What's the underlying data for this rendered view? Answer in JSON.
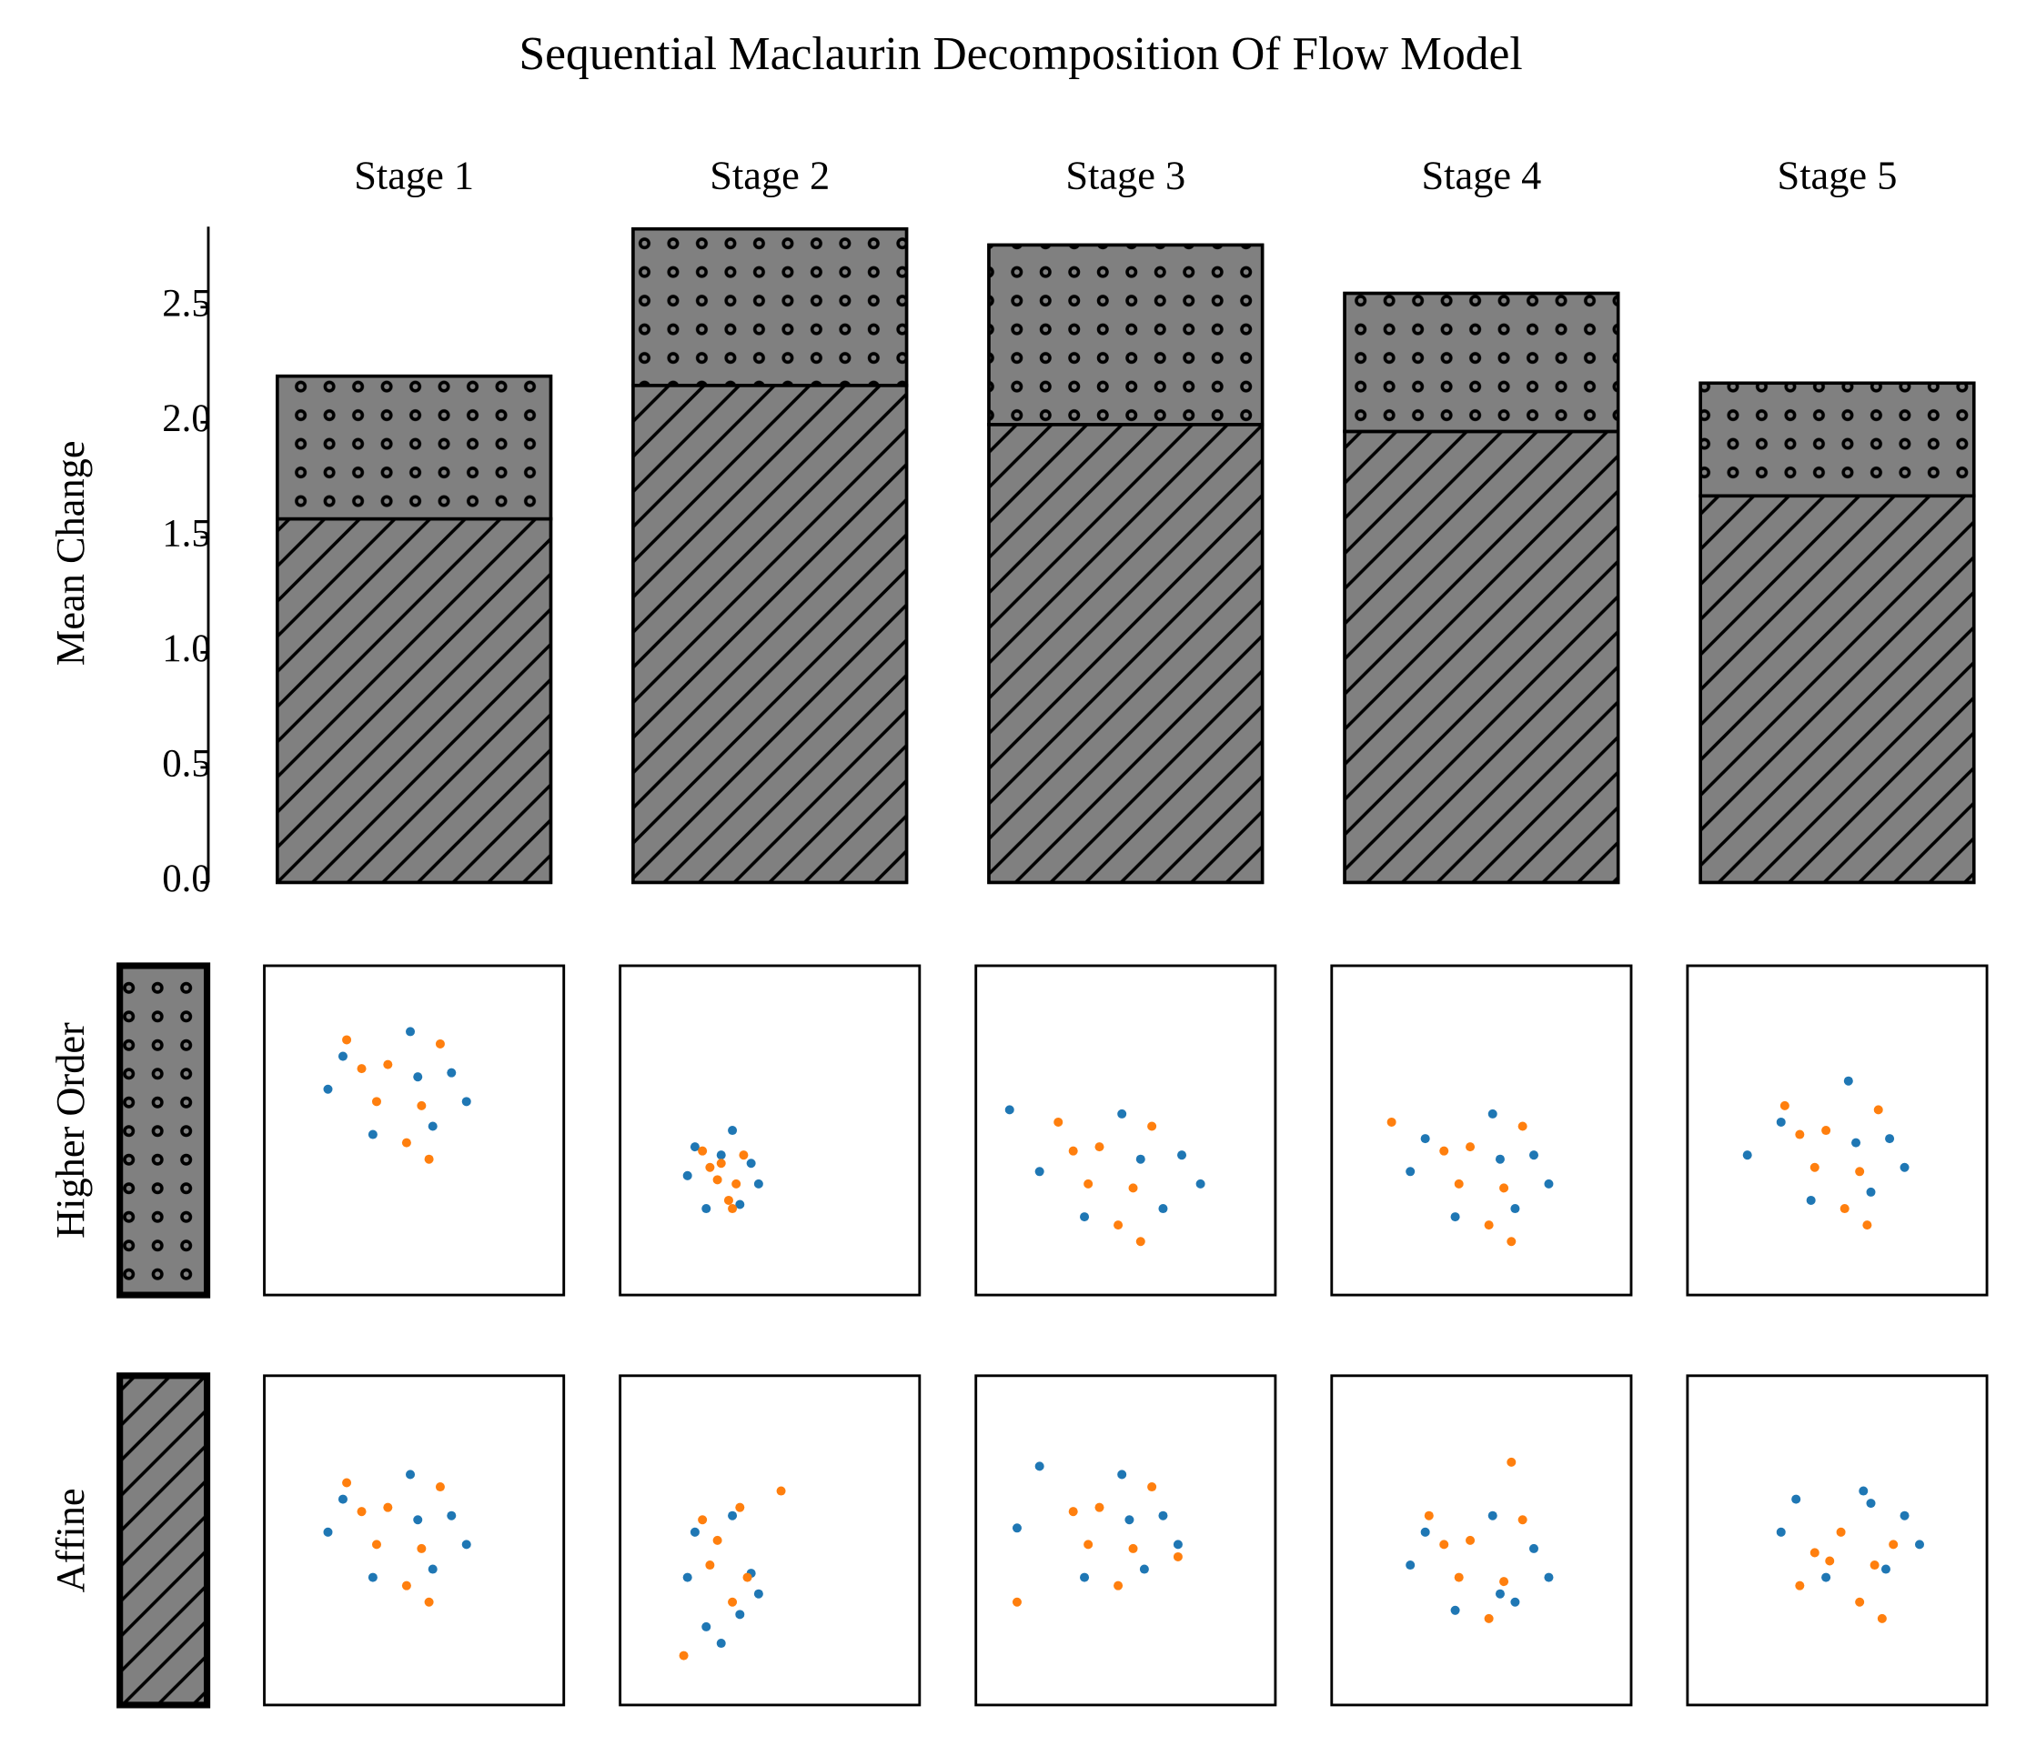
{
  "chart_data": [
    {
      "type": "bar",
      "title": "Sequential Maclaurin Decomposition Of Flow Model",
      "categories": [
        "Stage 1",
        "Stage 2",
        "Stage 3",
        "Stage 4",
        "Stage 5"
      ],
      "ylabel": "Mean Change",
      "stacked": true,
      "ylim": [
        0,
        2.85
      ],
      "yticks": [
        {
          "value": 0,
          "label": "0.0"
        },
        {
          "value": 0.5,
          "label": "0.5"
        },
        {
          "value": 1,
          "label": "1.0"
        },
        {
          "value": 1.5,
          "label": "1.5"
        },
        {
          "value": 2,
          "label": "2.0"
        },
        {
          "value": 2.5,
          "label": "2.5"
        }
      ],
      "series": [
        {
          "name": "Affine",
          "color": "#808080",
          "hatch": "/",
          "values": [
            1.58,
            2.16,
            1.99,
            1.96,
            1.68
          ]
        },
        {
          "name": "Higher Order",
          "color": "#808080",
          "hatch": "o",
          "values": [
            0.62,
            0.68,
            0.78,
            0.6,
            0.49
          ]
        }
      ]
    },
    {
      "type": "scatter",
      "xlim": [
        -4,
        4
      ],
      "ylim": [
        -4,
        4
      ],
      "rows": [
        {
          "panels": [
            {
              "series": [
                {
                  "color": "#1f77b4",
                  "x": [
                    -1.9,
                    1.0,
                    0.5,
                    -1.1,
                    -0.1,
                    1.4,
                    -2.3,
                    0.1
                  ],
                  "y": [
                    1.0,
                    0.6,
                    -0.7,
                    -0.9,
                    1.6,
                    -0.1,
                    0.2,
                    0.5
                  ]
                },
                {
                  "color": "#ff7f0e",
                  "x": [
                    -0.7,
                    0.2,
                    -1.4,
                    -0.2,
                    0.7,
                    -1.0,
                    -1.8,
                    0.4
                  ],
                  "y": [
                    0.8,
                    -0.2,
                    0.7,
                    -1.1,
                    1.3,
                    -0.1,
                    1.4,
                    -1.5
                  ]
                }
              ]
            },
            {
              "series": [
                {
                  "color": "#1f77b4",
                  "x": [
                    -2.0,
                    -0.5,
                    -0.8,
                    -1.7,
                    -1.0,
                    -0.3,
                    -2.2,
                    -1.3
                  ],
                  "y": [
                    0.2,
                    -0.8,
                    -1.8,
                    -2.1,
                    0.6,
                    -1.3,
                    -0.9,
                    -2.5
                  ]
                },
                {
                  "color": "#ff7f0e",
                  "x": [
                    -1.4,
                    -0.6,
                    -1.8,
                    -1.0,
                    0.3,
                    -1.6,
                    -2.3,
                    -0.8
                  ],
                  "y": [
                    0.0,
                    -0.9,
                    0.5,
                    -1.5,
                    1.2,
                    -0.6,
                    -2.8,
                    0.8
                  ]
                }
              ]
            },
            {
              "series": [
                {
                  "color": "#1f77b4",
                  "x": [
                    -2.9,
                    1.0,
                    0.5,
                    -1.1,
                    -0.1,
                    1.4,
                    -2.3,
                    0.1
                  ],
                  "y": [
                    0.3,
                    0.6,
                    -0.7,
                    -0.9,
                    1.6,
                    -0.1,
                    1.8,
                    0.5
                  ]
                },
                {
                  "color": "#ff7f0e",
                  "x": [
                    -0.7,
                    0.2,
                    -1.4,
                    -0.2,
                    0.7,
                    -1.0,
                    -2.9,
                    1.4
                  ],
                  "y": [
                    0.8,
                    -0.2,
                    0.7,
                    -1.1,
                    1.3,
                    -0.1,
                    -1.5,
                    -0.4
                  ]
                }
              ]
            },
            {
              "series": [
                {
                  "color": "#1f77b4",
                  "x": [
                    -1.5,
                    1.4,
                    0.9,
                    -0.7,
                    0.3,
                    1.8,
                    -1.9,
                    0.5
                  ],
                  "y": [
                    0.2,
                    -0.2,
                    -1.5,
                    -1.7,
                    0.6,
                    -0.9,
                    -0.6,
                    -1.3
                  ]
                },
                {
                  "color": "#ff7f0e",
                  "x": [
                    -0.3,
                    0.6,
                    -1.0,
                    0.2,
                    1.1,
                    -0.6,
                    -1.4,
                    0.8
                  ],
                  "y": [
                    0.0,
                    -1.0,
                    -0.1,
                    -1.9,
                    0.5,
                    -0.9,
                    0.6,
                    1.9
                  ]
                }
              ]
            },
            {
              "series": [
                {
                  "color": "#1f77b4",
                  "x": [
                    -1.1,
                    1.8,
                    1.3,
                    -0.3,
                    0.7,
                    2.2,
                    -1.5,
                    0.9
                  ],
                  "y": [
                    1.0,
                    0.6,
                    -0.7,
                    -0.9,
                    1.2,
                    -0.1,
                    0.2,
                    0.9
                  ]
                },
                {
                  "color": "#ff7f0e",
                  "x": [
                    0.1,
                    1.0,
                    -0.6,
                    0.6,
                    1.5,
                    -0.2,
                    -1.0,
                    1.2
                  ],
                  "y": [
                    0.2,
                    -0.6,
                    -0.3,
                    -1.5,
                    -0.1,
                    -0.5,
                    -1.1,
                    -1.9
                  ]
                }
              ]
            }
          ]
        },
        {
          "panels": [
            {
              "series": [
                {
                  "color": "#1f77b4",
                  "x": [
                    -1.9,
                    1.0,
                    0.5,
                    -1.1,
                    -0.1,
                    1.4,
                    -2.3,
                    0.1
                  ],
                  "y": [
                    1.8,
                    1.4,
                    0.1,
                    -0.1,
                    2.4,
                    0.7,
                    1.0,
                    1.3
                  ]
                },
                {
                  "color": "#ff7f0e",
                  "x": [
                    -0.7,
                    0.2,
                    -1.4,
                    -0.2,
                    0.7,
                    -1.0,
                    -1.8,
                    0.4
                  ],
                  "y": [
                    1.6,
                    0.6,
                    1.5,
                    -0.3,
                    2.1,
                    0.7,
                    2.2,
                    -0.7
                  ]
                }
              ]
            },
            {
              "series": [
                {
                  "color": "#1f77b4",
                  "x": [
                    -2.0,
                    -0.5,
                    -0.8,
                    -1.7,
                    -1.0,
                    -0.3,
                    -2.2,
                    -1.3
                  ],
                  "y": [
                    -0.4,
                    -0.8,
                    -1.8,
                    -1.9,
                    0.0,
                    -1.3,
                    -1.1,
                    -0.6
                  ]
                },
                {
                  "color": "#ff7f0e",
                  "x": [
                    -1.3,
                    -0.9,
                    -1.6,
                    -1.1,
                    -0.7,
                    -1.4,
                    -1.8,
                    -1.0
                  ],
                  "y": [
                    -0.8,
                    -1.3,
                    -0.9,
                    -1.7,
                    -0.6,
                    -1.2,
                    -0.5,
                    -1.9
                  ]
                }
              ]
            },
            {
              "series": [
                {
                  "color": "#1f77b4",
                  "x": [
                    -3.1,
                    1.5,
                    1.0,
                    -1.1,
                    -0.1,
                    2.0,
                    -2.3,
                    0.4
                  ],
                  "y": [
                    0.5,
                    -0.6,
                    -1.9,
                    -2.1,
                    0.4,
                    -1.3,
                    -1.0,
                    -0.7
                  ]
                },
                {
                  "color": "#ff7f0e",
                  "x": [
                    -0.7,
                    0.2,
                    -1.4,
                    -0.2,
                    0.7,
                    -1.0,
                    -1.8,
                    0.4
                  ],
                  "y": [
                    -0.4,
                    -1.4,
                    -0.5,
                    -2.3,
                    0.1,
                    -1.3,
                    0.2,
                    -2.7
                  ]
                }
              ]
            },
            {
              "series": [
                {
                  "color": "#1f77b4",
                  "x": [
                    -1.5,
                    1.4,
                    0.9,
                    -0.7,
                    0.3,
                    1.8,
                    -1.9,
                    0.5
                  ],
                  "y": [
                    -0.2,
                    -0.6,
                    -1.9,
                    -2.1,
                    0.4,
                    -1.3,
                    -1.0,
                    -0.7
                  ]
                },
                {
                  "color": "#ff7f0e",
                  "x": [
                    -0.3,
                    0.6,
                    -1.0,
                    0.2,
                    1.1,
                    -0.6,
                    -2.4,
                    0.8
                  ],
                  "y": [
                    -0.4,
                    -1.4,
                    -0.5,
                    -2.3,
                    0.1,
                    -1.3,
                    0.2,
                    -2.7
                  ]
                }
              ]
            },
            {
              "series": [
                {
                  "color": "#1f77b4",
                  "x": [
                    -1.5,
                    1.4,
                    0.9,
                    -0.7,
                    0.3,
                    1.8,
                    -2.4,
                    0.5
                  ],
                  "y": [
                    0.2,
                    -0.2,
                    -1.5,
                    -1.7,
                    1.2,
                    -0.9,
                    -0.6,
                    -0.3
                  ]
                },
                {
                  "color": "#ff7f0e",
                  "x": [
                    -0.3,
                    0.6,
                    -1.0,
                    0.2,
                    1.1,
                    -0.6,
                    -1.4,
                    0.8
                  ],
                  "y": [
                    0.0,
                    -1.0,
                    -0.1,
                    -1.9,
                    0.5,
                    -0.9,
                    0.6,
                    -2.3
                  ]
                }
              ]
            }
          ]
        }
      ]
    }
  ]
}
